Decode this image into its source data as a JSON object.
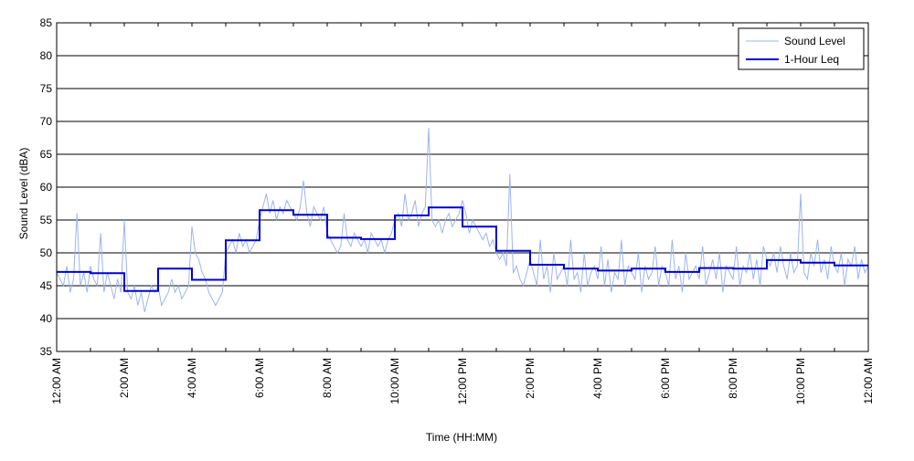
{
  "chart_data": {
    "type": "line",
    "title": "",
    "xlabel": "Time (HH:MM)",
    "ylabel": "Sound Level (dBA)",
    "ylim": [
      35,
      85
    ],
    "y_ticks": [
      35,
      40,
      45,
      50,
      55,
      60,
      65,
      70,
      75,
      80,
      85
    ],
    "xlim_hours": [
      0,
      24
    ],
    "x_tick_labels": [
      "12:00 AM",
      "2:00 AM",
      "4:00 AM",
      "6:00 AM",
      "8:00 AM",
      "10:00 AM",
      "12:00 PM",
      "2:00 PM",
      "4:00 PM",
      "6:00 PM",
      "8:00 PM",
      "10:00 PM",
      "12:00 AM"
    ],
    "grid": "horizontal",
    "legend_position": "top-right",
    "colors": {
      "sound_level": "#9db4f0",
      "leq": "#0000cc"
    },
    "series": [
      {
        "name": "Sound Level",
        "x_hours": [
          0.0,
          0.1,
          0.2,
          0.3,
          0.4,
          0.5,
          0.6,
          0.7,
          0.8,
          0.9,
          1.0,
          1.1,
          1.2,
          1.3,
          1.4,
          1.5,
          1.6,
          1.7,
          1.8,
          1.9,
          2.0,
          2.1,
          2.2,
          2.3,
          2.4,
          2.5,
          2.6,
          2.7,
          2.8,
          2.9,
          3.0,
          3.1,
          3.2,
          3.3,
          3.4,
          3.5,
          3.6,
          3.7,
          3.8,
          3.9,
          4.0,
          4.1,
          4.2,
          4.3,
          4.4,
          4.5,
          4.6,
          4.7,
          4.8,
          4.9,
          5.0,
          5.1,
          5.2,
          5.3,
          5.4,
          5.5,
          5.6,
          5.7,
          5.8,
          5.9,
          6.0,
          6.1,
          6.2,
          6.3,
          6.4,
          6.5,
          6.6,
          6.7,
          6.8,
          6.9,
          7.0,
          7.1,
          7.2,
          7.3,
          7.4,
          7.5,
          7.6,
          7.7,
          7.8,
          7.9,
          8.0,
          8.1,
          8.2,
          8.3,
          8.4,
          8.5,
          8.6,
          8.7,
          8.8,
          8.9,
          9.0,
          9.1,
          9.2,
          9.3,
          9.4,
          9.5,
          9.6,
          9.7,
          9.8,
          9.9,
          10.0,
          10.1,
          10.2,
          10.3,
          10.4,
          10.5,
          10.6,
          10.7,
          10.8,
          10.9,
          11.0,
          11.1,
          11.2,
          11.3,
          11.4,
          11.5,
          11.6,
          11.7,
          11.8,
          11.9,
          12.0,
          12.1,
          12.2,
          12.3,
          12.4,
          12.5,
          12.6,
          12.7,
          12.8,
          12.9,
          13.0,
          13.1,
          13.2,
          13.3,
          13.4,
          13.5,
          13.6,
          13.7,
          13.8,
          13.9,
          14.0,
          14.1,
          14.2,
          14.3,
          14.4,
          14.5,
          14.6,
          14.7,
          14.8,
          14.9,
          15.0,
          15.1,
          15.2,
          15.3,
          15.4,
          15.5,
          15.6,
          15.7,
          15.8,
          15.9,
          16.0,
          16.1,
          16.2,
          16.3,
          16.4,
          16.5,
          16.6,
          16.7,
          16.8,
          16.9,
          17.0,
          17.1,
          17.2,
          17.3,
          17.4,
          17.5,
          17.6,
          17.7,
          17.8,
          17.9,
          18.0,
          18.1,
          18.2,
          18.3,
          18.4,
          18.5,
          18.6,
          18.7,
          18.8,
          18.9,
          19.0,
          19.1,
          19.2,
          19.3,
          19.4,
          19.5,
          19.6,
          19.7,
          19.8,
          19.9,
          20.0,
          20.1,
          20.2,
          20.3,
          20.4,
          20.5,
          20.6,
          20.7,
          20.8,
          20.9,
          21.0,
          21.1,
          21.2,
          21.3,
          21.4,
          21.5,
          21.6,
          21.7,
          21.8,
          21.9,
          22.0,
          22.1,
          22.2,
          22.3,
          22.4,
          22.5,
          22.6,
          22.7,
          22.8,
          22.9,
          23.0,
          23.1,
          23.2,
          23.3,
          23.4,
          23.5,
          23.6,
          23.7,
          23.8,
          23.9,
          24.0
        ],
        "values": [
          47,
          46,
          45,
          48,
          44,
          46,
          56,
          45,
          47,
          44,
          48,
          46,
          45,
          53,
          44,
          47,
          45,
          43,
          46,
          44,
          55,
          44,
          43,
          45,
          42,
          44,
          41,
          43,
          45,
          44,
          45,
          42,
          43,
          44,
          46,
          44,
          45,
          43,
          44,
          45,
          54,
          50,
          49,
          47,
          46,
          44,
          43,
          42,
          43,
          44,
          50,
          51,
          52,
          50,
          53,
          51,
          52,
          50,
          51,
          52,
          55,
          57,
          59,
          56,
          58,
          55,
          57,
          56,
          58,
          57,
          56,
          55,
          57,
          61,
          56,
          54,
          57,
          56,
          55,
          57,
          53,
          52,
          51,
          50,
          51,
          56,
          52,
          51,
          53,
          52,
          51,
          52,
          50,
          53,
          52,
          51,
          52,
          50,
          52,
          53,
          55,
          56,
          54,
          59,
          55,
          56,
          58,
          54,
          56,
          57,
          69,
          55,
          54,
          55,
          53,
          55,
          56,
          54,
          55,
          56,
          58,
          56,
          53,
          55,
          54,
          53,
          52,
          53,
          51,
          52,
          50,
          49,
          50,
          48,
          62,
          47,
          48,
          46,
          45,
          47,
          49,
          47,
          45,
          52,
          46,
          48,
          44,
          50,
          46,
          47,
          48,
          45,
          52,
          46,
          47,
          44,
          50,
          45,
          47,
          48,
          46,
          51,
          45,
          49,
          44,
          47,
          46,
          52,
          45,
          48,
          47,
          46,
          50,
          44,
          48,
          46,
          47,
          51,
          45,
          48,
          47,
          45,
          52,
          46,
          48,
          44,
          50,
          46,
          47,
          48,
          46,
          51,
          45,
          47,
          49,
          46,
          50,
          44,
          48,
          47,
          46,
          51,
          45,
          48,
          47,
          50,
          46,
          49,
          45,
          51,
          49,
          48,
          50,
          47,
          51,
          48,
          46,
          50,
          47,
          48,
          59,
          47,
          46,
          50,
          48,
          52,
          47,
          49,
          46,
          51,
          48,
          47,
          50,
          45,
          49,
          48,
          51,
          46,
          49,
          47,
          48
        ]
      },
      {
        "name": "1-Hour Leq",
        "step_start_hours": [
          0,
          1,
          2,
          3,
          4,
          5,
          6,
          7,
          8,
          9,
          10,
          11,
          12,
          13,
          14,
          15,
          16,
          17,
          18,
          19,
          20,
          21,
          22,
          23
        ],
        "values": [
          47.1,
          46.9,
          44.2,
          47.6,
          45.9,
          51.9,
          56.5,
          55.8,
          52.3,
          52.1,
          55.7,
          56.9,
          54.0,
          50.3,
          48.2,
          47.6,
          47.3,
          47.6,
          47.1,
          47.7,
          47.6,
          48.9,
          48.5,
          48.1
        ]
      }
    ]
  }
}
